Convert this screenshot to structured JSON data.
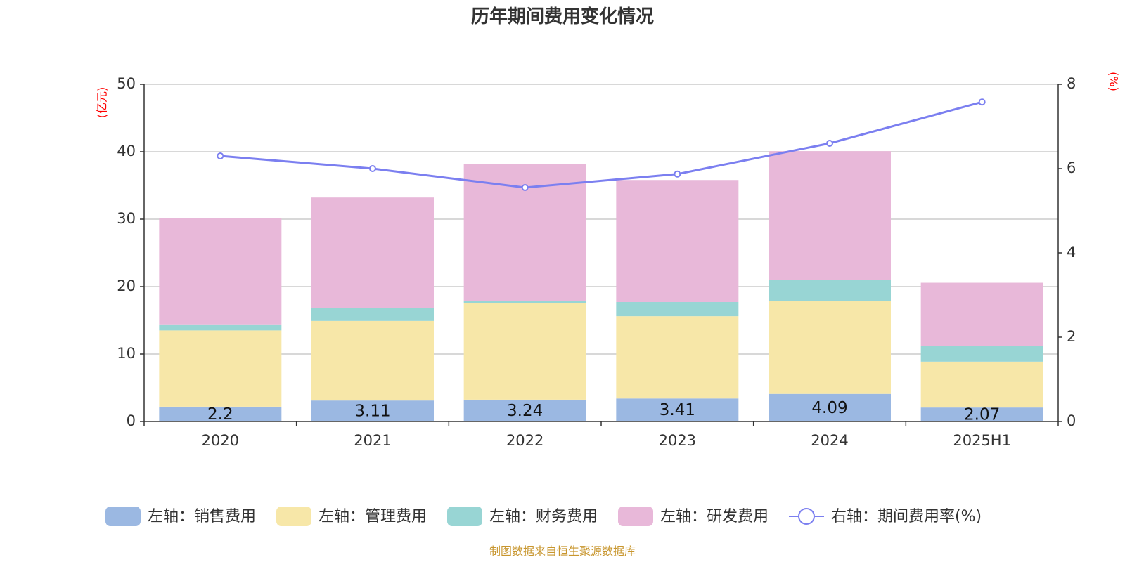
{
  "chart_data": {
    "type": "bar",
    "title": "历年期间费用变化情况",
    "categories": [
      "2020",
      "2021",
      "2022",
      "2023",
      "2024",
      "2025H1"
    ],
    "left_axis": {
      "unit": "(亿元)",
      "ylim": [
        0,
        50
      ],
      "ticks": [
        "0",
        "10",
        "20",
        "30",
        "40",
        "50"
      ]
    },
    "right_axis": {
      "unit": "(%)",
      "ylim": [
        0,
        8
      ],
      "ticks": [
        "0",
        "2",
        "4",
        "6",
        "8"
      ]
    },
    "series": [
      {
        "name": "左轴：销售费用",
        "type": "bar",
        "color": "#9bb8e2",
        "values": [
          2.2,
          3.11,
          3.24,
          3.41,
          4.09,
          2.07
        ],
        "labels": [
          "2.2",
          "3.11",
          "3.24",
          "3.41",
          "4.09",
          "2.07"
        ]
      },
      {
        "name": "左轴：管理费用",
        "type": "bar",
        "color": "#f7e7a8",
        "values": [
          11.3,
          11.8,
          14.3,
          12.2,
          13.8,
          6.8
        ]
      },
      {
        "name": "左轴：财务费用",
        "type": "bar",
        "color": "#98d5d4",
        "values": [
          0.9,
          1.9,
          0.3,
          2.1,
          3.1,
          2.3
        ]
      },
      {
        "name": "左轴：研发费用",
        "type": "bar",
        "color": "#e8b8d9",
        "values": [
          15.8,
          16.4,
          20.3,
          18.1,
          19.1,
          9.4
        ]
      },
      {
        "name": "右轴：期间费用率(%)",
        "type": "line",
        "axis": "right",
        "color": "#7b7ff0",
        "values": [
          6.3,
          6.0,
          5.55,
          5.87,
          6.6,
          7.58
        ]
      }
    ],
    "grid": true,
    "legend_position": "bottom"
  },
  "footer": {
    "source": "制图数据来自恒生聚源数据库"
  }
}
